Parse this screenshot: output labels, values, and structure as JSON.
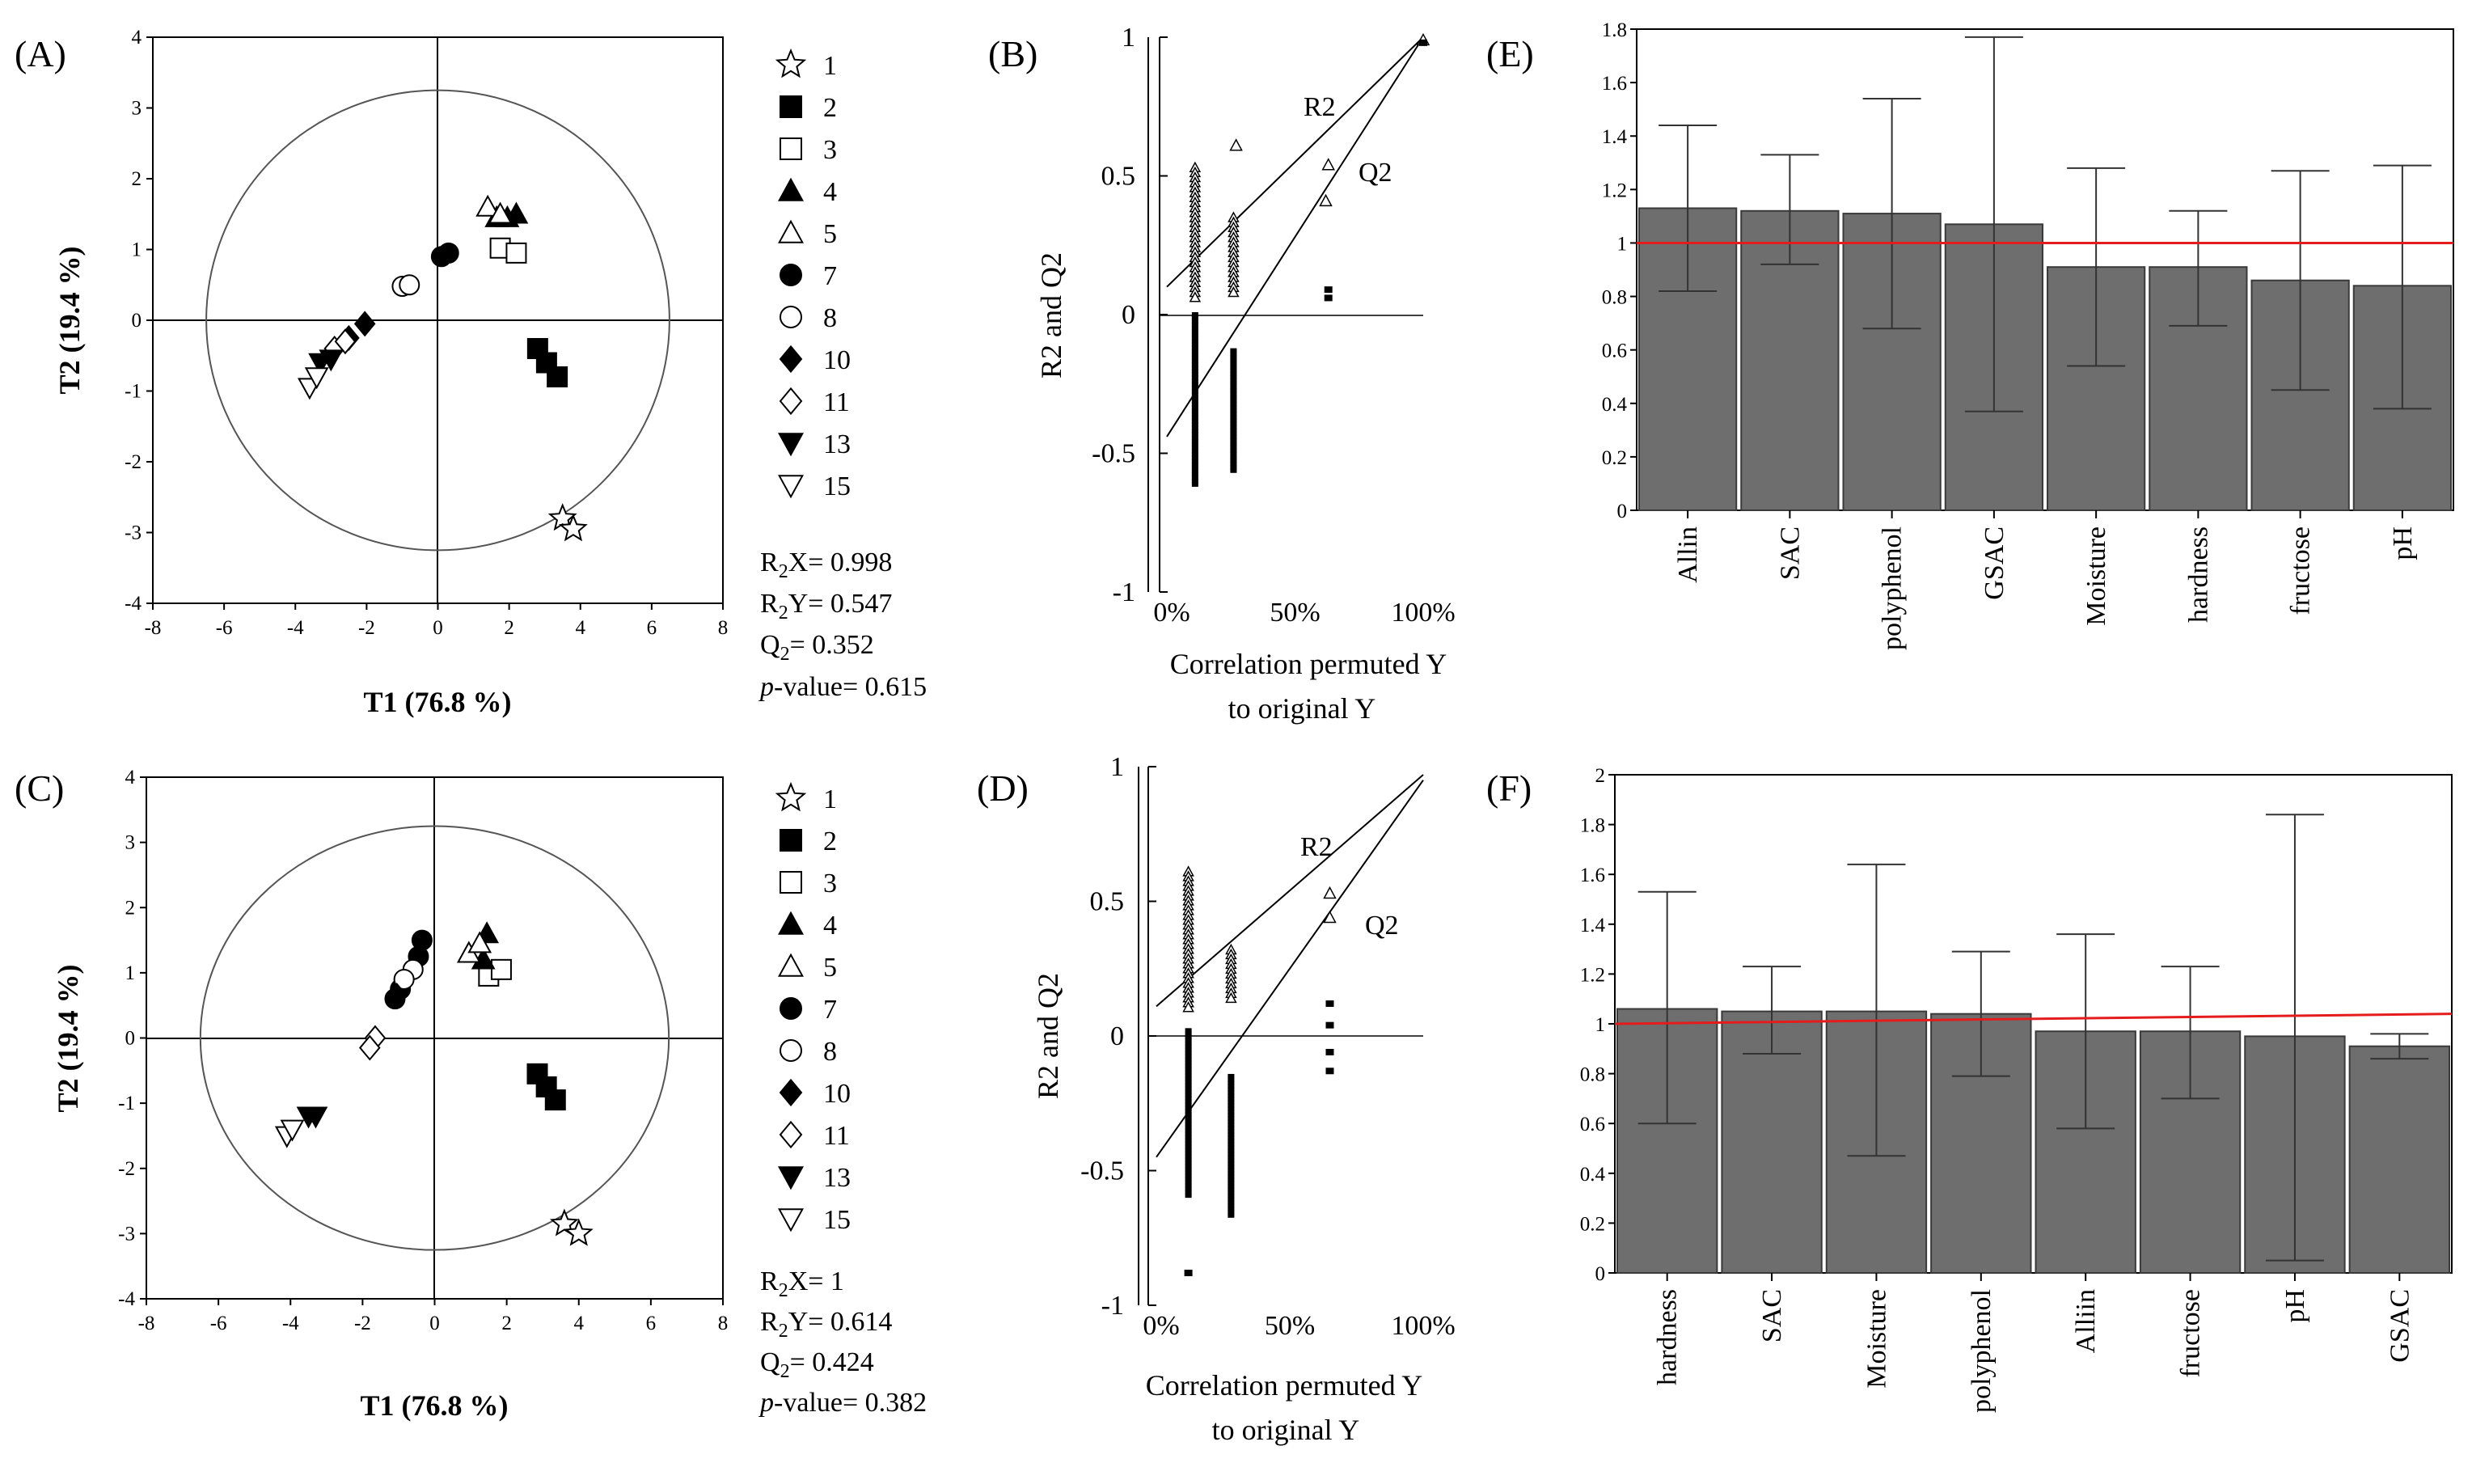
{
  "figure": {
    "panels": [
      "(A)",
      "(B)",
      "(C)",
      "(D)",
      "(E)",
      "(F)"
    ]
  },
  "chart_data": [
    {
      "id": "A",
      "type": "scatter",
      "panel_label": "(A)",
      "xlabel": "T1 (76.8 %)",
      "ylabel": "T2 (19.4 %)",
      "xlim": [
        -8,
        8
      ],
      "ylim": [
        -4,
        4
      ],
      "xticks": [
        "-8",
        "-6",
        "-4",
        "-2",
        "0",
        "2",
        "4",
        "6",
        "8"
      ],
      "yticks": [
        "4",
        "3",
        "2",
        "1",
        "0",
        "-1",
        "-2",
        "-3",
        "-4"
      ],
      "circle_radius": 6.5,
      "series": [
        {
          "name": "1",
          "marker": "star-open",
          "points": [
            [
              3.5,
              -2.8
            ],
            [
              3.8,
              -2.95
            ]
          ]
        },
        {
          "name": "2",
          "marker": "square-filled",
          "points": [
            [
              2.8,
              -0.4
            ],
            [
              3.05,
              -0.6
            ],
            [
              3.35,
              -0.8
            ]
          ]
        },
        {
          "name": "3",
          "marker": "square-open",
          "points": [
            [
              1.75,
              1.02
            ],
            [
              2.2,
              0.95
            ]
          ]
        },
        {
          "name": "4",
          "marker": "triangle-up-filled",
          "points": [
            [
              1.65,
              1.45
            ],
            [
              1.95,
              1.45
            ],
            [
              2.2,
              1.5
            ]
          ]
        },
        {
          "name": "5",
          "marker": "triangle-up-open",
          "points": [
            [
              1.4,
              1.6
            ],
            [
              1.75,
              1.5
            ]
          ]
        },
        {
          "name": "7",
          "marker": "circle-filled",
          "points": [
            [
              0.1,
              0.9
            ],
            [
              0.3,
              0.95
            ]
          ]
        },
        {
          "name": "8",
          "marker": "circle-open",
          "points": [
            [
              -1.0,
              0.48
            ],
            [
              -0.8,
              0.5
            ]
          ]
        },
        {
          "name": "10",
          "marker": "diamond-filled",
          "points": [
            [
              -2.5,
              -0.25
            ],
            [
              -2.05,
              -0.05
            ]
          ]
        },
        {
          "name": "11",
          "marker": "diamond-open",
          "points": [
            [
              -2.9,
              -0.4
            ],
            [
              -2.6,
              -0.3
            ]
          ]
        },
        {
          "name": "13",
          "marker": "triangle-down-filled",
          "points": [
            [
              -3.3,
              -0.6
            ],
            [
              -3.0,
              -0.55
            ]
          ]
        },
        {
          "name": "15",
          "marker": "triangle-down-open",
          "points": [
            [
              -3.6,
              -0.95
            ],
            [
              -3.4,
              -0.8
            ]
          ]
        }
      ],
      "legend": [
        "1",
        "2",
        "3",
        "4",
        "5",
        "7",
        "8",
        "10",
        "11",
        "13",
        "15"
      ],
      "stats": [
        "R2X= 0.998",
        "R2Y= 0.547",
        "Q2= 0.352",
        "p-value= 0.615"
      ]
    },
    {
      "id": "C",
      "type": "scatter",
      "panel_label": "(C)",
      "xlabel": "T1 (76.8 %)",
      "ylabel": "T2 (19.4 %)",
      "xlim": [
        -8,
        8
      ],
      "ylim": [
        -4,
        4
      ],
      "xticks": [
        "-8",
        "-6",
        "-4",
        "-2",
        "0",
        "2",
        "4",
        "6",
        "8"
      ],
      "yticks": [
        "4",
        "3",
        "2",
        "1",
        "0",
        "-1",
        "-2",
        "-3",
        "-4"
      ],
      "circle_radius": 6.5,
      "series": [
        {
          "name": "1",
          "marker": "star-open",
          "points": [
            [
              3.6,
              -2.85
            ],
            [
              4.0,
              -3.0
            ]
          ]
        },
        {
          "name": "2",
          "marker": "square-filled",
          "points": [
            [
              2.85,
              -0.55
            ],
            [
              3.1,
              -0.75
            ],
            [
              3.35,
              -0.95
            ]
          ]
        },
        {
          "name": "3",
          "marker": "square-open",
          "points": [
            [
              1.5,
              0.95
            ],
            [
              1.85,
              1.05
            ]
          ]
        },
        {
          "name": "4",
          "marker": "triangle-up-filled",
          "points": [
            [
              1.45,
              1.6
            ],
            [
              1.35,
              1.2
            ]
          ]
        },
        {
          "name": "5",
          "marker": "triangle-up-open",
          "points": [
            [
              0.95,
              1.3
            ],
            [
              1.25,
              1.45
            ]
          ]
        },
        {
          "name": "7",
          "marker": "circle-filled",
          "points": [
            [
              -0.35,
              1.5
            ],
            [
              -0.45,
              1.25
            ],
            [
              -0.95,
              0.75
            ],
            [
              -1.1,
              0.6
            ]
          ]
        },
        {
          "name": "8",
          "marker": "circle-open",
          "points": [
            [
              -0.6,
              1.05
            ],
            [
              -0.85,
              0.9
            ]
          ]
        },
        {
          "name": "10",
          "marker": "diamond-filled",
          "points": [
            [
              -1.05,
              0.65
            ]
          ]
        },
        {
          "name": "11",
          "marker": "diamond-open",
          "points": [
            [
              -1.65,
              0.0
            ],
            [
              -1.8,
              -0.15
            ]
          ]
        },
        {
          "name": "13",
          "marker": "triangle-down-filled",
          "points": [
            [
              -3.5,
              -1.2
            ],
            [
              -3.3,
              -1.2
            ]
          ]
        },
        {
          "name": "15",
          "marker": "triangle-down-open",
          "points": [
            [
              -4.1,
              -1.5
            ],
            [
              -3.95,
              -1.4
            ]
          ]
        }
      ],
      "legend": [
        "1",
        "2",
        "3",
        "4",
        "5",
        "7",
        "8",
        "10",
        "11",
        "13",
        "15"
      ],
      "stats": [
        "R2X= 1",
        "R2Y= 0.614",
        "Q2= 0.424",
        "p-value= 0.382"
      ]
    },
    {
      "id": "B",
      "type": "scatter",
      "panel_label": "(B)",
      "xlabel": "Correlation permuted Y to original Y",
      "xlabel_lines": [
        "Correlation permuted Y",
        "to original Y"
      ],
      "ylabel": "R2 and Q2",
      "xlim": [
        0,
        1
      ],
      "ylim": [
        -1,
        1
      ],
      "xticks": [
        "0%",
        "50%",
        "100%"
      ],
      "yticks": [
        "1",
        "0.5",
        "0",
        "-0.5",
        "-1"
      ],
      "line_labels": [
        "R2",
        "Q2"
      ],
      "r2_line": {
        "intercept": 0.1,
        "slope": 0.9
      },
      "q2_line": {
        "intercept": -0.44,
        "slope": 1.44
      },
      "r2_points": [
        {
          "x": 0.11,
          "y_min": 0.05,
          "y_max": 0.53
        },
        {
          "x": 0.26,
          "y_min": 0.07,
          "y_max": 0.35
        },
        {
          "x": 0.27,
          "y": 0.61
        },
        {
          "x": 0.63,
          "y": 0.54
        },
        {
          "x": 0.62,
          "y": 0.41
        },
        {
          "x": 1.0,
          "y": 0.99
        }
      ],
      "q2_points": [
        {
          "x": 0.11,
          "y_min": -0.62,
          "y_max": 0.0
        },
        {
          "x": 0.26,
          "y_min": -0.57,
          "y_max": -0.13
        },
        {
          "x": 0.63,
          "y": 0.09
        },
        {
          "x": 0.63,
          "y": 0.06
        },
        {
          "x": 1.0,
          "y": 0.98
        }
      ]
    },
    {
      "id": "D",
      "type": "scatter",
      "panel_label": "(D)",
      "xlabel": "Correlation permuted Y to original Y",
      "xlabel_lines": [
        "Correlation permuted Y",
        "to original Y"
      ],
      "ylabel": "R2 and Q2",
      "xlim": [
        0,
        1
      ],
      "ylim": [
        -1,
        1
      ],
      "xticks": [
        "0%",
        "50%",
        "100%"
      ],
      "yticks": [
        "1",
        "0.5",
        "0",
        "-0.5",
        "-1"
      ],
      "line_labels": [
        "R2",
        "Q2"
      ],
      "r2_line": {
        "intercept": 0.11,
        "slope": 0.86
      },
      "q2_line": {
        "intercept": -0.45,
        "slope": 1.4
      },
      "r2_points": [
        {
          "x": 0.12,
          "y_min": 0.09,
          "y_max": 0.61
        },
        {
          "x": 0.28,
          "y_min": 0.14,
          "y_max": 0.32
        },
        {
          "x": 0.65,
          "y": 0.53
        },
        {
          "x": 0.65,
          "y": 0.44
        }
      ],
      "q2_points": [
        {
          "x": 0.12,
          "y_min": -0.6,
          "y_max": 0.02
        },
        {
          "x": 0.28,
          "y_min": -0.67,
          "y_max": -0.15
        },
        {
          "x": 0.12,
          "y": -0.88
        },
        {
          "x": 0.65,
          "y": 0.12
        },
        {
          "x": 0.65,
          "y": 0.04
        },
        {
          "x": 0.65,
          "y": -0.06
        },
        {
          "x": 0.65,
          "y": -0.13
        }
      ]
    },
    {
      "id": "E",
      "type": "bar",
      "panel_label": "(E)",
      "categories": [
        "Allin",
        "SAC",
        "polyphenol",
        "GSAC",
        "Moisture",
        "hardness",
        "fructose",
        "pH"
      ],
      "values": [
        1.13,
        1.12,
        1.11,
        1.07,
        0.91,
        0.91,
        0.86,
        0.84
      ],
      "error_low": [
        0.82,
        0.92,
        0.68,
        0.37,
        0.54,
        0.69,
        0.45,
        0.38
      ],
      "error_high": [
        1.44,
        1.33,
        1.54,
        1.77,
        1.28,
        1.12,
        1.27,
        1.29
      ],
      "ylim": [
        0,
        1.8
      ],
      "yticks": [
        "0",
        "0.2",
        "0.4",
        "0.6",
        "0.8",
        "1",
        "1.2",
        "1.4",
        "1.6",
        "1.8"
      ],
      "threshold": 1.0,
      "threshold_color": "#e41c1c",
      "bar_color": "#6e6e6e"
    },
    {
      "id": "F",
      "type": "bar",
      "panel_label": "(F)",
      "categories": [
        "hardness",
        "SAC",
        "Moisture",
        "polyphenol",
        "Alliin",
        "fructose",
        "pH",
        "GSAC"
      ],
      "values": [
        1.06,
        1.05,
        1.05,
        1.04,
        0.97,
        0.97,
        0.95,
        0.91
      ],
      "error_low": [
        0.6,
        0.88,
        0.47,
        0.79,
        0.58,
        0.7,
        0.05,
        0.86
      ],
      "error_high": [
        1.53,
        1.23,
        1.64,
        1.29,
        1.36,
        1.23,
        1.84,
        0.96
      ],
      "ylim": [
        0,
        2
      ],
      "yticks": [
        "0",
        "0.2",
        "0.4",
        "0.6",
        "0.8",
        "1",
        "1.2",
        "1.4",
        "1.6",
        "1.8",
        "2"
      ],
      "threshold": 1.0,
      "threshold_end": 1.04,
      "threshold_color": "#e41c1c",
      "bar_color": "#6e6e6e"
    }
  ]
}
